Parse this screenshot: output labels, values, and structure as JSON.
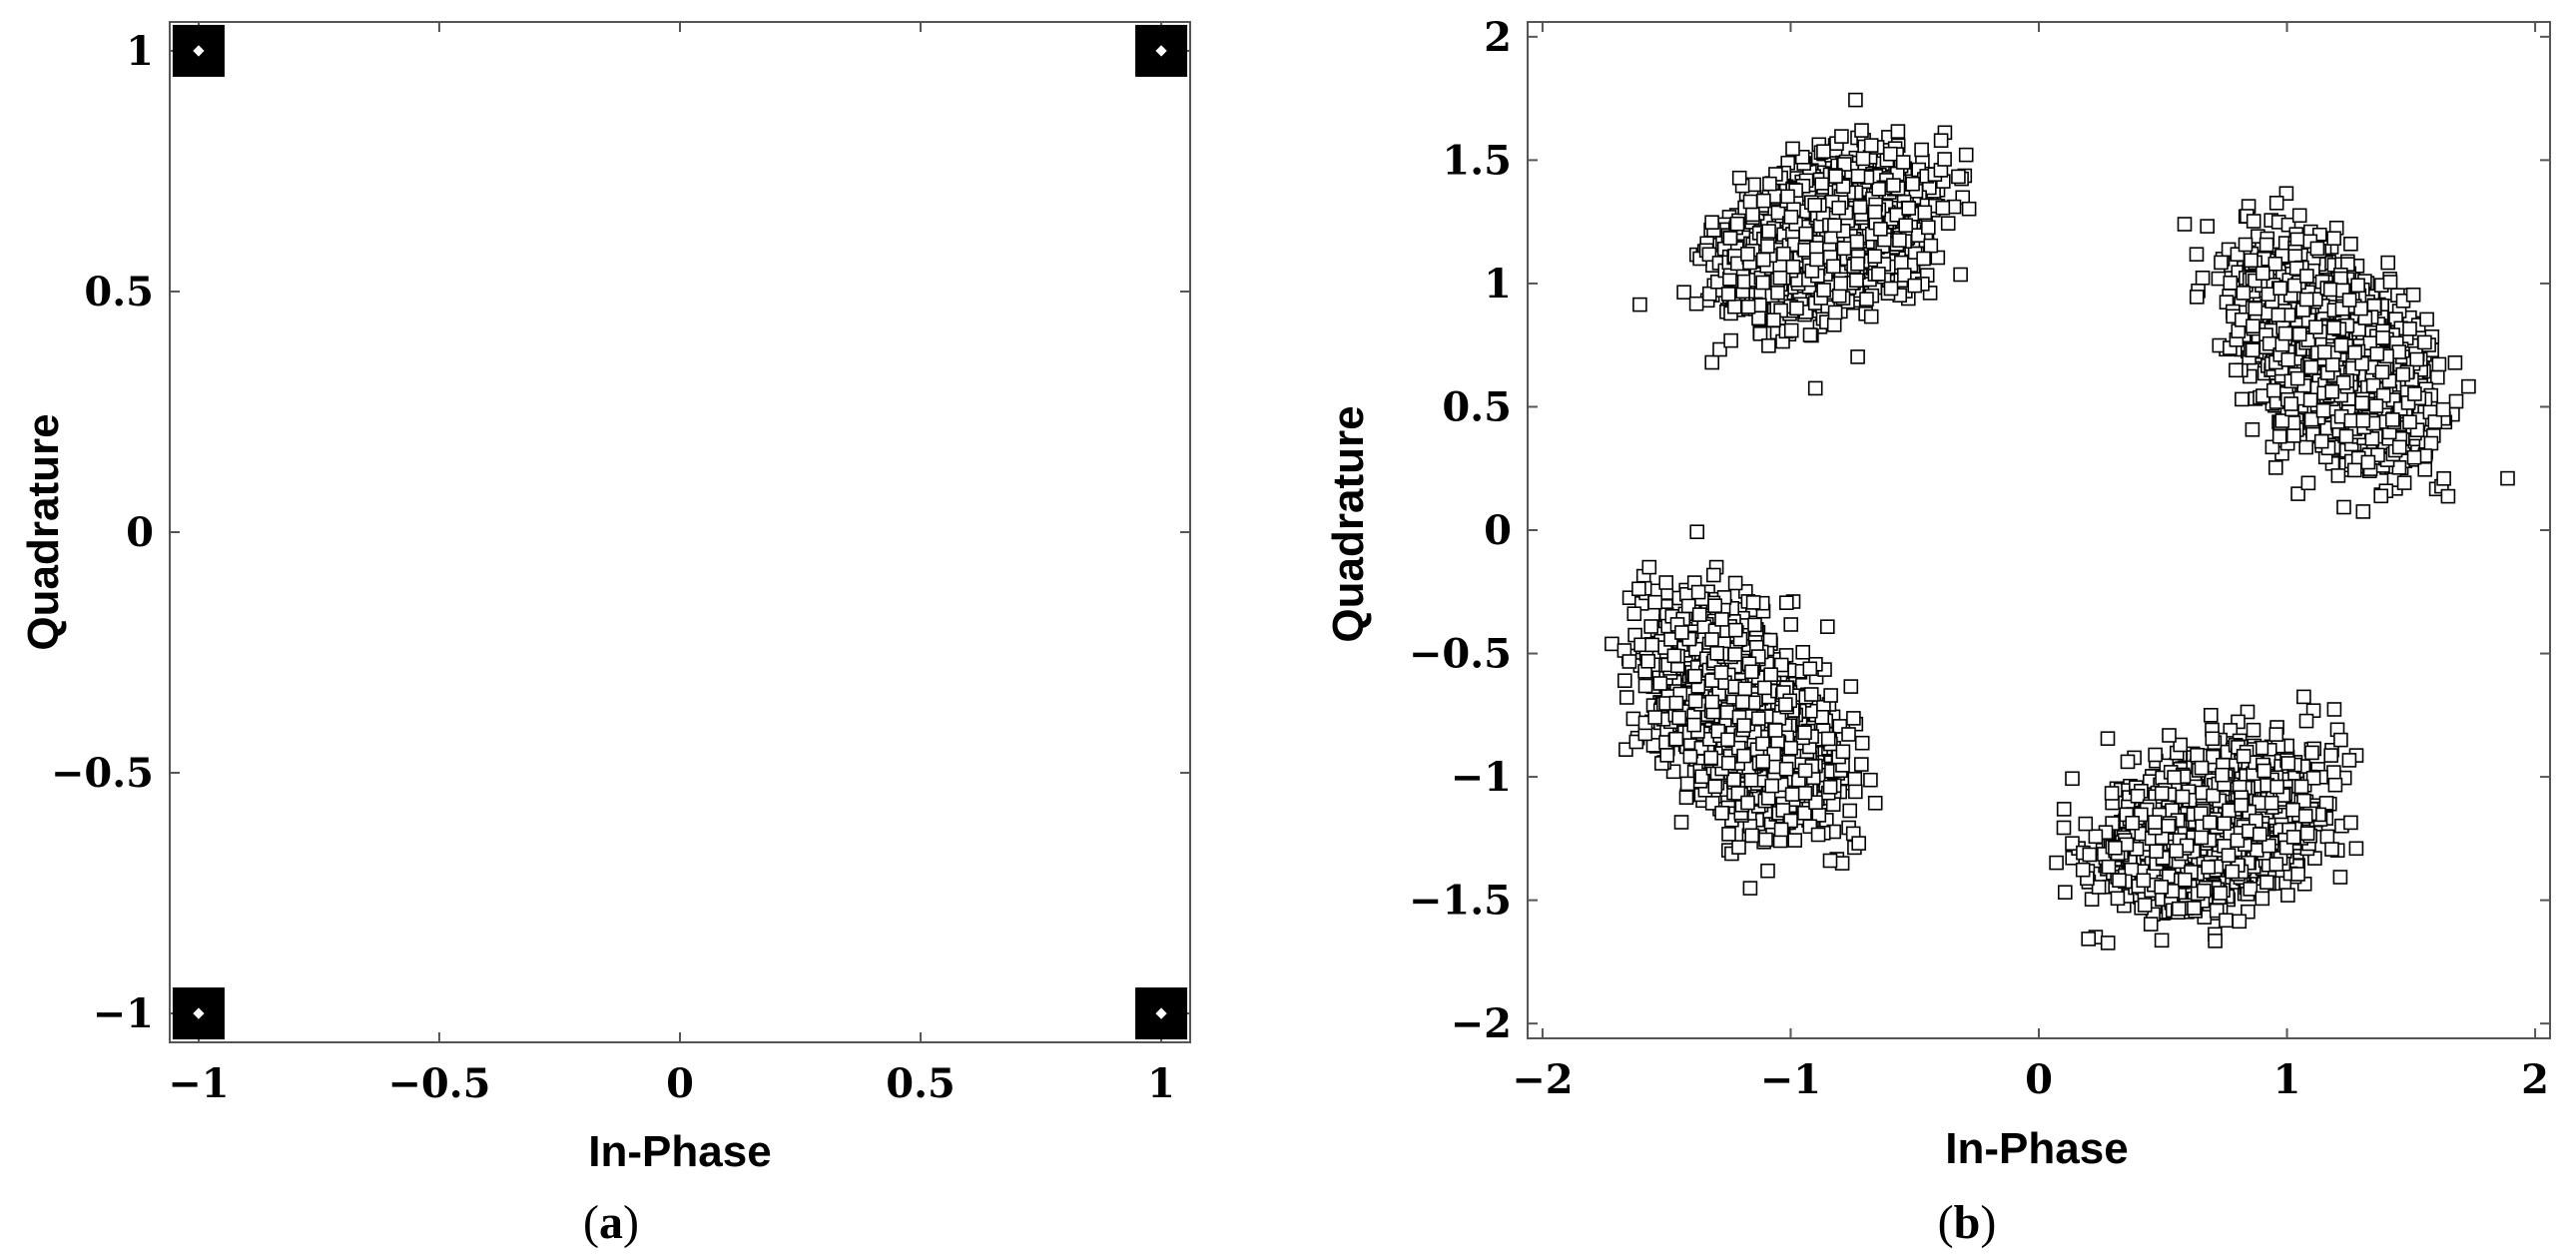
{
  "chart_data": [
    {
      "type": "scatter",
      "panel_caption": {
        "open": "(",
        "letter": "a",
        "close": ")"
      },
      "xlabel": "In-Phase",
      "ylabel": "Quadrature",
      "xlim": [
        -1.06,
        1.06
      ],
      "ylim": [
        -1.06,
        1.06
      ],
      "xticks": [
        -1,
        -0.5,
        0,
        0.5,
        1
      ],
      "yticks": [
        -1,
        -0.5,
        0,
        0.5,
        1
      ],
      "xtick_labels": [
        "−1",
        "−0.5",
        "0",
        "0.5",
        "1"
      ],
      "ytick_labels": [
        "−1",
        "−0.5",
        "0",
        "0.5",
        "1"
      ],
      "grid": false,
      "marker": "filled-square",
      "series": [
        {
          "points": [
            [
              -1,
              1
            ],
            [
              1,
              1
            ],
            [
              -1,
              -1
            ],
            [
              1,
              -1
            ]
          ]
        }
      ]
    },
    {
      "type": "scatter",
      "panel_caption": {
        "open": "(",
        "letter": "b",
        "close": ")"
      },
      "xlabel": "In-Phase",
      "ylabel": "Quadrature",
      "xlim": [
        -2.06,
        2.06
      ],
      "ylim": [
        -2.06,
        2.06
      ],
      "xticks": [
        -2,
        -1,
        0,
        1,
        2
      ],
      "yticks": [
        -2,
        -1.5,
        -1,
        -0.5,
        0,
        0.5,
        1,
        1.5,
        2
      ],
      "xtick_labels": [
        "−2",
        "−1",
        "0",
        "1",
        "2"
      ],
      "ytick_labels": [
        "−2",
        "−1.5",
        "−1",
        "−0.5",
        "0",
        "0.5",
        "1",
        "1.5",
        "2"
      ],
      "grid": false,
      "marker": "hollow-square",
      "clusters": [
        {
          "center": [
            -0.85,
            1.2
          ],
          "spread_major": 0.2,
          "spread_minor": 0.13,
          "tilt_deg": 25
        },
        {
          "center": [
            1.2,
            0.7
          ],
          "spread_major": 0.22,
          "spread_minor": 0.13,
          "tilt_deg": -55
        },
        {
          "center": [
            -1.2,
            -0.75
          ],
          "spread_major": 0.22,
          "spread_minor": 0.13,
          "tilt_deg": -55
        },
        {
          "center": [
            0.7,
            -1.2
          ],
          "spread_major": 0.2,
          "spread_minor": 0.13,
          "tilt_deg": 25
        }
      ],
      "points_per_cluster": 2200
    }
  ]
}
